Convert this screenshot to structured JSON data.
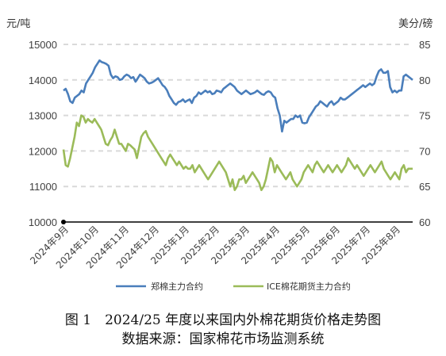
{
  "chart_data": {
    "type": "line",
    "left_unit": "元/吨",
    "right_unit": "美分/磅",
    "left_axis": {
      "ylim": [
        10000,
        15000
      ],
      "ticks": [
        "15000",
        "14000",
        "13000",
        "12000",
        "11000",
        "10000"
      ]
    },
    "right_axis": {
      "ylim": [
        60,
        85
      ],
      "ticks": [
        "85",
        "80",
        "75",
        "70",
        "65",
        "60"
      ]
    },
    "x_labels": [
      "2024年9月",
      "2024年10月",
      "2024年11月",
      "2024年12月",
      "2025年1月",
      "2025年2月",
      "2025年3月",
      "2025年4月",
      "2025年5月",
      "2025年6月",
      "2025年7月",
      "2025年8月"
    ],
    "grid": true,
    "legend_position": "bottom",
    "colors": {
      "zhengmian": "#4a7ebb",
      "ice": "#9bbb59"
    },
    "series": [
      {
        "name": "郑棉主力合约",
        "axis": "left",
        "values": [
          13700,
          13750,
          13600,
          13400,
          13350,
          13500,
          13550,
          13600,
          13700,
          13650,
          13900,
          14000,
          14100,
          14200,
          14350,
          14450,
          14550,
          14500,
          14480,
          14450,
          14400,
          14150,
          14050,
          14100,
          14080,
          14000,
          14020,
          14100,
          14150,
          14120,
          14050,
          14080,
          13950,
          14050,
          14150,
          14100,
          14050,
          13950,
          13900,
          13920,
          13950,
          14000,
          14050,
          13950,
          13850,
          13800,
          13700,
          13550,
          13450,
          13350,
          13300,
          13380,
          13400,
          13450,
          13380,
          13420,
          13450,
          13350,
          13500,
          13550,
          13650,
          13600,
          13650,
          13700,
          13650,
          13680,
          13600,
          13620,
          13700,
          13680,
          13650,
          13750,
          13800,
          13850,
          13900,
          13850,
          13800,
          13700,
          13650,
          13600,
          13650,
          13700,
          13650,
          13600,
          13620,
          13650,
          13700,
          13650,
          13600,
          13580,
          13650,
          13680,
          13650,
          13550,
          13500,
          13200,
          13000,
          12550,
          12850,
          12800,
          12850,
          12900,
          12900,
          13000,
          12950,
          13000,
          12800,
          12780,
          12800,
          12950,
          13050,
          13150,
          13250,
          13300,
          13400,
          13350,
          13300,
          13250,
          13350,
          13400,
          13300,
          13350,
          13400,
          13500,
          13450,
          13450,
          13500,
          13550,
          13600,
          13650,
          13700,
          13750,
          13800,
          13850,
          13800,
          13850,
          13900,
          13850,
          13900,
          14100,
          14250,
          14300,
          14200,
          14200,
          14250,
          13800,
          13650,
          13700,
          13650,
          13700,
          13700,
          14100,
          14150,
          14100,
          14050,
          14000
        ]
      },
      {
        "name": "ICE棉花期货主力合约",
        "axis": "right",
        "values": [
          70.2,
          68.0,
          67.8,
          69.0,
          70.5,
          72.0,
          74.0,
          73.5,
          75.0,
          74.8,
          74.0,
          74.5,
          74.2,
          74.0,
          74.5,
          74.0,
          73.5,
          73.0,
          72.0,
          71.0,
          70.8,
          71.5,
          72.0,
          73.0,
          72.0,
          71.0,
          71.0,
          70.5,
          70.0,
          71.0,
          70.8,
          70.5,
          70.2,
          69.0,
          70.5,
          72.0,
          72.5,
          72.8,
          72.0,
          71.5,
          71.0,
          70.5,
          70.0,
          69.5,
          69.0,
          68.5,
          68.0,
          69.0,
          69.5,
          69.0,
          68.5,
          68.0,
          68.5,
          68.0,
          67.5,
          67.8,
          67.5,
          67.5,
          68.0,
          67.0,
          67.5,
          68.0,
          67.5,
          67.0,
          66.5,
          66.0,
          66.5,
          67.0,
          67.5,
          68.0,
          68.5,
          68.0,
          67.5,
          67.0,
          66.0,
          65.0,
          66.0,
          64.5,
          65.0,
          66.0,
          66.0,
          66.5,
          65.5,
          66.0,
          66.5,
          67.0,
          66.5,
          66.0,
          65.5,
          64.5,
          65.0,
          66.0,
          67.5,
          69.0,
          68.5,
          67.0,
          68.0,
          67.5,
          67.0,
          66.5,
          66.0,
          66.5,
          67.0,
          66.0,
          65.5,
          65.0,
          65.5,
          66.0,
          67.0,
          67.5,
          68.0,
          67.5,
          67.0,
          68.0,
          68.5,
          68.0,
          67.5,
          67.0,
          67.5,
          68.0,
          67.5,
          67.0,
          67.5,
          68.0,
          67.5,
          67.0,
          67.5,
          68.0,
          69.0,
          68.5,
          68.0,
          67.5,
          68.0,
          67.5,
          67.0,
          66.5,
          67.0,
          67.5,
          68.0,
          67.5,
          67.0,
          67.5,
          68.0,
          68.5,
          67.5,
          67.0,
          66.5,
          66.0,
          66.5,
          67.0,
          66.5,
          66.0,
          67.5,
          68.0,
          67.0,
          67.5,
          67.5,
          67.5
        ]
      }
    ]
  },
  "caption": {
    "line1": "图 1　2024/25 年度以来国内外棉花期货价格走势图",
    "line2": "数据来源：国家棉花市场监测系统"
  }
}
